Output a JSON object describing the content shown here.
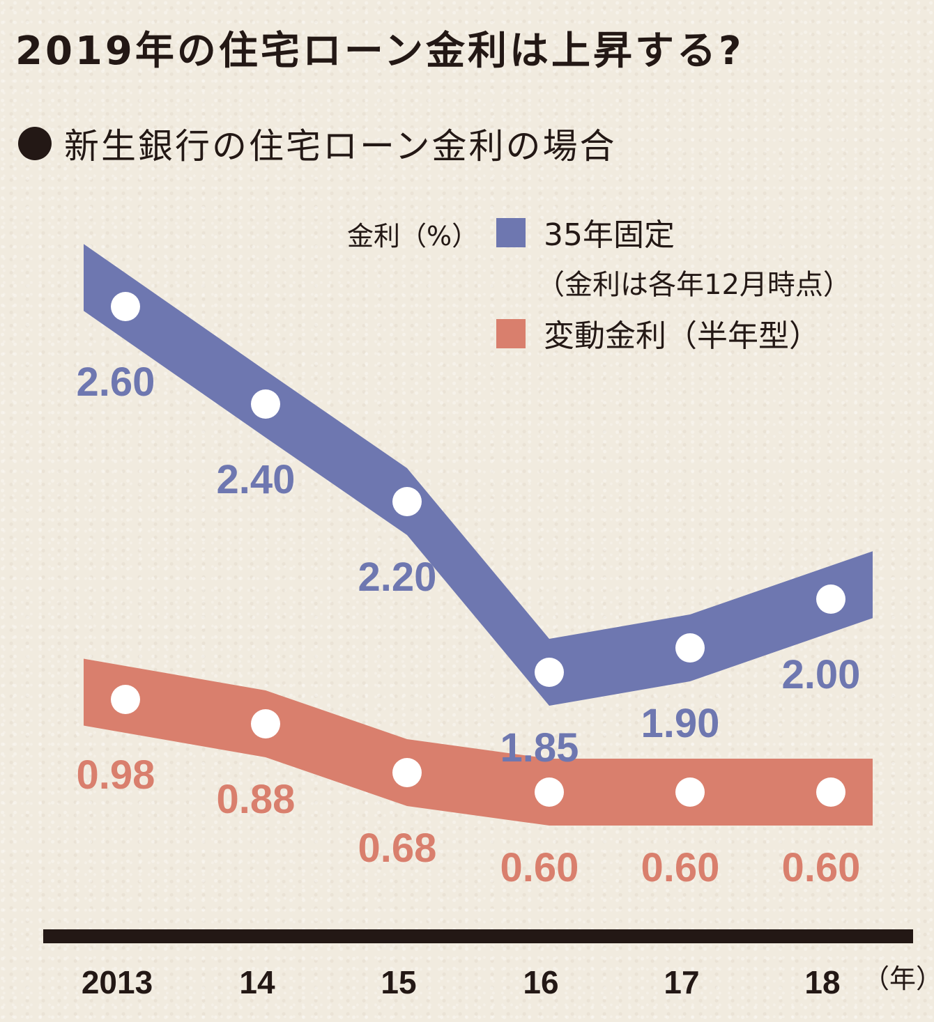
{
  "title": "2019年の住宅ローン金利は上昇する?",
  "subtitle": "新生銀行の住宅ローン金利の場合",
  "colors": {
    "fixed": "#6e77b0",
    "variable": "#d97f6d",
    "axis": "#231815",
    "dot": "#ffffff"
  },
  "chart_data": {
    "type": "line",
    "ylabel": "金利（%）",
    "x_unit": "（年）",
    "categories": [
      "2013",
      "14",
      "15",
      "16",
      "17",
      "18"
    ],
    "series": [
      {
        "name": "35年固定",
        "note": "（金利は各年12月時点）",
        "values": [
          2.6,
          2.4,
          2.2,
          1.85,
          1.9,
          2.0
        ],
        "labels": [
          "2.60",
          "2.40",
          "2.20",
          "1.85",
          "1.90",
          "2.00"
        ]
      },
      {
        "name": "変動金利（半年型）",
        "values": [
          0.98,
          0.88,
          0.68,
          0.6,
          0.6,
          0.6
        ],
        "labels": [
          "0.98",
          "0.88",
          "0.68",
          "0.60",
          "0.60",
          "0.60"
        ]
      }
    ]
  }
}
